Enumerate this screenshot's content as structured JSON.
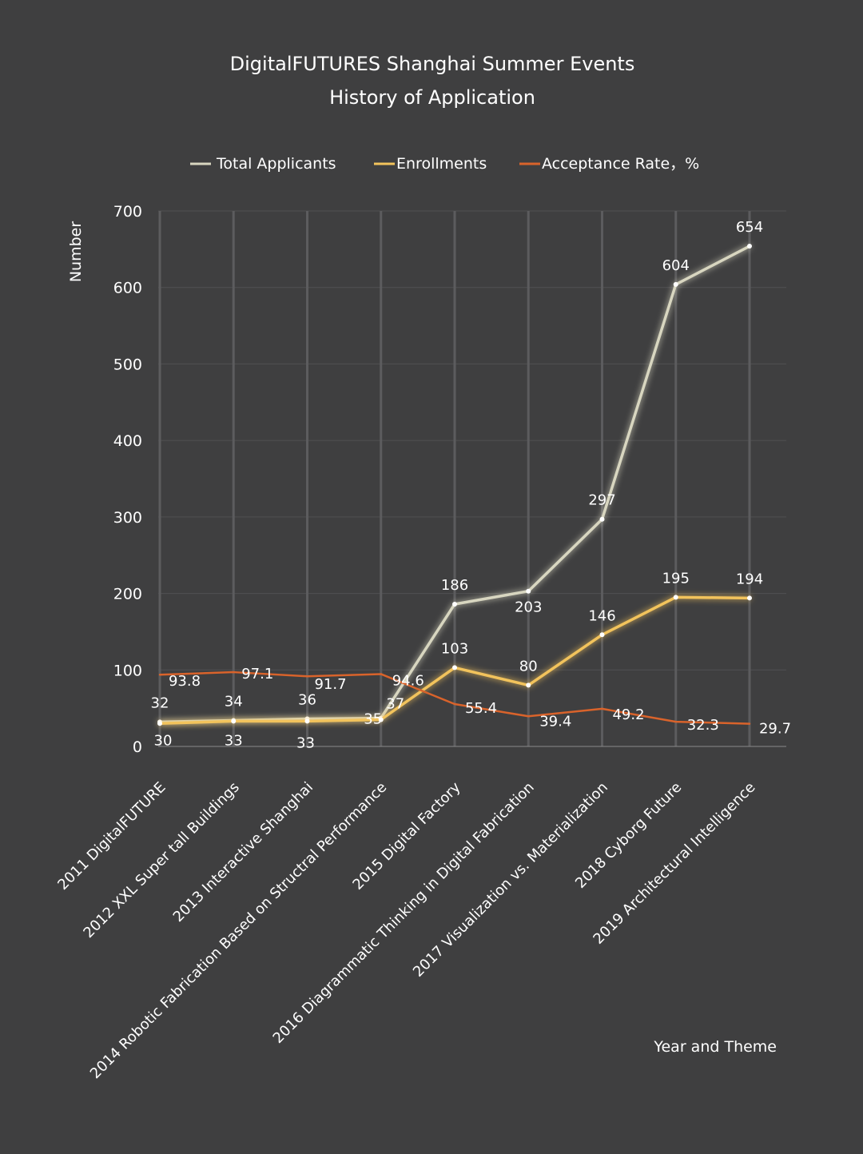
{
  "chart_data": {
    "type": "line",
    "title_lines": [
      "DigitalFUTURES Shanghai Summer Events",
      "History of Application"
    ],
    "ylabel": "Number",
    "xlabel": "Year and Theme",
    "ylim": [
      0,
      700
    ],
    "yticks": [
      0,
      100,
      200,
      300,
      400,
      500,
      600,
      700
    ],
    "grid": true,
    "legend_position": "top",
    "categories": [
      "2011  DigitalFUTURE",
      "2012  XXL Super tall Buildings",
      "2013   Interactive Shanghai",
      "2014  Robotic Fabrication Based on Structral Performance",
      "2015  Digital Factory",
      "2016  Diagrammatic Thinking in Digital Fabrication",
      "2017  Visualization vs. Materialization",
      "2018  Cyborg Future",
      "2019  Architectural Intelligence"
    ],
    "series": [
      {
        "name": "Total Applicants",
        "color": "#d8d6c0",
        "glow": "#e8e49a",
        "values": [
          32,
          34,
          36,
          37,
          186,
          203,
          297,
          604,
          654
        ],
        "labels": [
          "32",
          "34",
          "36",
          "37",
          "186",
          "203",
          "297",
          "604",
          "654"
        ]
      },
      {
        "name": "Enrollments",
        "color": "#f2c35c",
        "glow": "#f0d56a",
        "values": [
          30,
          33,
          33,
          35,
          103,
          80,
          146,
          195,
          194
        ],
        "labels": [
          "30",
          "33",
          "33",
          "35",
          "103",
          "80",
          "146",
          "195",
          "194"
        ]
      },
      {
        "name": "Acceptance Rate，%",
        "color": "#d9632b",
        "values": [
          93.8,
          97.1,
          91.7,
          94.6,
          55.4,
          39.4,
          49.2,
          32.3,
          29.7
        ],
        "labels": [
          "93.8",
          "97.1",
          "91.7",
          "94.6",
          "55.4",
          "39.4",
          "49.2",
          "32.3",
          "29.7"
        ]
      }
    ]
  }
}
